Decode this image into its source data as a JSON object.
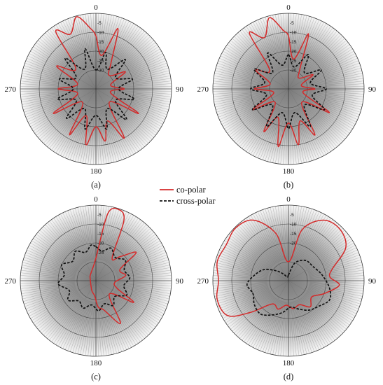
{
  "legend": {
    "co_label": "co-polar",
    "cross_label": "cross-polar"
  },
  "colors": {
    "co": "#d42a2a",
    "cross": "#111111",
    "grid": "#666666"
  },
  "chart_data": [
    {
      "type": "polar",
      "panel_label": "(a)",
      "angle_labels": [
        "0",
        "90",
        "180",
        "270"
      ],
      "radial_ticks": [
        -5,
        -10,
        -15,
        -20,
        -25,
        -30
      ],
      "rlim": [
        -40,
        0
      ],
      "grid": true,
      "angle_direction": "clockwise",
      "series": [
        {
          "name": "co-polar",
          "style": "solid",
          "points": [
            [
              0,
              -12
            ],
            [
              10,
              -22
            ],
            [
              20,
              -6
            ],
            [
              30,
              -24
            ],
            [
              45,
              -30
            ],
            [
              60,
              -22
            ],
            [
              75,
              -32
            ],
            [
              90,
              -25
            ],
            [
              105,
              -32
            ],
            [
              120,
              -14
            ],
            [
              135,
              -30
            ],
            [
              150,
              -10
            ],
            [
              160,
              -22
            ],
            [
              170,
              -12
            ],
            [
              180,
              -20
            ],
            [
              190,
              -10
            ],
            [
              200,
              -25
            ],
            [
              210,
              -12
            ],
            [
              225,
              -30
            ],
            [
              240,
              -14
            ],
            [
              255,
              -30
            ],
            [
              270,
              -20
            ],
            [
              285,
              -30
            ],
            [
              300,
              -16
            ],
            [
              315,
              -25
            ],
            [
              325,
              -3
            ],
            [
              335,
              -8
            ],
            [
              345,
              -0.5
            ],
            [
              355,
              -8
            ]
          ]
        },
        {
          "name": "cross-polar",
          "style": "dashed",
          "points": [
            [
              0,
              -30
            ],
            [
              15,
              -20
            ],
            [
              30,
              -28
            ],
            [
              45,
              -18
            ],
            [
              60,
              -28
            ],
            [
              75,
              -20
            ],
            [
              90,
              -28
            ],
            [
              105,
              -19
            ],
            [
              120,
              -28
            ],
            [
              135,
              -17
            ],
            [
              150,
              -28
            ],
            [
              165,
              -18
            ],
            [
              180,
              -26
            ],
            [
              195,
              -18
            ],
            [
              210,
              -28
            ],
            [
              225,
              -18
            ],
            [
              240,
              -28
            ],
            [
              255,
              -19
            ],
            [
              270,
              -28
            ],
            [
              285,
              -20
            ],
            [
              300,
              -28
            ],
            [
              315,
              -17
            ],
            [
              330,
              -28
            ],
            [
              345,
              -18
            ]
          ]
        }
      ]
    },
    {
      "type": "polar",
      "panel_label": "(b)",
      "angle_labels": [
        "0",
        "90",
        "180",
        "270"
      ],
      "radial_ticks": [
        -5,
        -10,
        -15,
        -20,
        -25,
        -30
      ],
      "rlim": [
        -40,
        0
      ],
      "grid": true,
      "angle_direction": "clockwise",
      "series": [
        {
          "name": "co-polar",
          "style": "solid",
          "points": [
            [
              0,
              -12
            ],
            [
              10,
              -24
            ],
            [
              20,
              -9
            ],
            [
              30,
              -28
            ],
            [
              45,
              -32
            ],
            [
              60,
              -25
            ],
            [
              75,
              -33
            ],
            [
              90,
              -26
            ],
            [
              105,
              -32
            ],
            [
              120,
              -15
            ],
            [
              135,
              -30
            ],
            [
              150,
              -12
            ],
            [
              160,
              -22
            ],
            [
              170,
              -10
            ],
            [
              180,
              -22
            ],
            [
              190,
              -9
            ],
            [
              200,
              -24
            ],
            [
              210,
              -14
            ],
            [
              225,
              -30
            ],
            [
              240,
              -18
            ],
            [
              255,
              -32
            ],
            [
              270,
              -22
            ],
            [
              285,
              -30
            ],
            [
              300,
              -20
            ],
            [
              315,
              -26
            ],
            [
              325,
              -4
            ],
            [
              335,
              -10
            ],
            [
              345,
              -1
            ],
            [
              355,
              -9
            ]
          ]
        },
        {
          "name": "cross-polar",
          "style": "dashed",
          "points": [
            [
              0,
              -22
            ],
            [
              15,
              -28
            ],
            [
              30,
              -19
            ],
            [
              45,
              -28
            ],
            [
              60,
              -20
            ],
            [
              75,
              -28
            ],
            [
              90,
              -20
            ],
            [
              105,
              -27
            ],
            [
              120,
              -18
            ],
            [
              135,
              -28
            ],
            [
              150,
              -17
            ],
            [
              165,
              -27
            ],
            [
              180,
              -19
            ],
            [
              195,
              -27
            ],
            [
              210,
              -17
            ],
            [
              225,
              -28
            ],
            [
              240,
              -18
            ],
            [
              255,
              -28
            ],
            [
              270,
              -20
            ],
            [
              285,
              -27
            ],
            [
              300,
              -19
            ],
            [
              315,
              -28
            ],
            [
              330,
              -18
            ],
            [
              345,
              -27
            ]
          ]
        }
      ]
    },
    {
      "type": "polar",
      "panel_label": "(c)",
      "angle_labels": [
        "0",
        "90",
        "180",
        "270"
      ],
      "radial_ticks": [
        -5,
        -10,
        -15,
        -20,
        -25
      ],
      "rlim": [
        -40,
        0
      ],
      "grid": true,
      "angle_direction": "clockwise",
      "series": [
        {
          "name": "co-polar",
          "style": "solid",
          "points": [
            [
              0,
              -28
            ],
            [
              10,
              -4
            ],
            [
              18,
              -0.5
            ],
            [
              25,
              -5
            ],
            [
              35,
              -25
            ],
            [
              45,
              -22
            ],
            [
              55,
              -14
            ],
            [
              65,
              -26
            ],
            [
              80,
              -24
            ],
            [
              95,
              -30
            ],
            [
              110,
              -28
            ],
            [
              120,
              -17
            ],
            [
              135,
              -30
            ],
            [
              150,
              -14
            ],
            [
              165,
              -24
            ],
            [
              175,
              -26
            ],
            [
              185,
              -32
            ],
            [
              200,
              -34
            ],
            [
              220,
              -36
            ],
            [
              250,
              -37
            ],
            [
              280,
              -37
            ],
            [
              310,
              -36
            ],
            [
              340,
              -34
            ]
          ]
        },
        {
          "name": "cross-polar",
          "style": "dashed",
          "points": [
            [
              0,
              -22
            ],
            [
              12,
              -24
            ],
            [
              25,
              -21
            ],
            [
              40,
              -24
            ],
            [
              55,
              -21
            ],
            [
              70,
              -24
            ],
            [
              85,
              -22
            ],
            [
              100,
              -25
            ],
            [
              115,
              -22
            ],
            [
              130,
              -27
            ],
            [
              145,
              -24
            ],
            [
              160,
              -27
            ],
            [
              175,
              -24
            ],
            [
              190,
              -27
            ],
            [
              205,
              -24
            ],
            [
              220,
              -26
            ],
            [
              235,
              -22
            ],
            [
              250,
              -25
            ],
            [
              265,
              -20
            ],
            [
              280,
              -23
            ],
            [
              295,
              -20
            ],
            [
              310,
              -24
            ],
            [
              325,
              -21
            ],
            [
              340,
              -24
            ],
            [
              352,
              -21
            ]
          ]
        }
      ]
    },
    {
      "type": "polar",
      "panel_label": "(d)",
      "angle_labels": [
        "0",
        "90",
        "180",
        "270"
      ],
      "radial_ticks": [
        -5,
        -10,
        -15,
        -20
      ],
      "rlim": [
        -40,
        0
      ],
      "grid": true,
      "angle_direction": "clockwise",
      "series": [
        {
          "name": "co-polar",
          "style": "solid",
          "points": [
            [
              0,
              -30
            ],
            [
              15,
              -12
            ],
            [
              30,
              -3
            ],
            [
              45,
              -1.5
            ],
            [
              60,
              -5
            ],
            [
              75,
              -16
            ],
            [
              85,
              -18
            ],
            [
              95,
              -13
            ],
            [
              110,
              -20
            ],
            [
              125,
              -25
            ],
            [
              140,
              -22
            ],
            [
              155,
              -26
            ],
            [
              170,
              -25
            ],
            [
              185,
              -27
            ],
            [
              200,
              -24
            ],
            [
              215,
              -25
            ],
            [
              230,
              -14
            ],
            [
              240,
              -3
            ],
            [
              255,
              -1
            ],
            [
              270,
              -3
            ],
            [
              285,
              -1
            ],
            [
              300,
              -2
            ],
            [
              315,
              -0.5
            ],
            [
              330,
              -3
            ],
            [
              345,
              -14
            ]
          ]
        },
        {
          "name": "cross-polar",
          "style": "dashed",
          "points": [
            [
              0,
              -37
            ],
            [
              20,
              -30
            ],
            [
              40,
              -26
            ],
            [
              60,
              -25
            ],
            [
              80,
              -22
            ],
            [
              100,
              -18
            ],
            [
              115,
              -16
            ],
            [
              130,
              -19
            ],
            [
              145,
              -21
            ],
            [
              160,
              -24
            ],
            [
              175,
              -26
            ],
            [
              190,
              -23
            ],
            [
              205,
              -20
            ],
            [
              220,
              -17
            ],
            [
              235,
              -18
            ],
            [
              250,
              -20
            ],
            [
              265,
              -18
            ],
            [
              280,
              -22
            ],
            [
              295,
              -26
            ],
            [
              310,
              -32
            ],
            [
              325,
              -36
            ],
            [
              340,
              -38
            ]
          ]
        }
      ]
    }
  ]
}
